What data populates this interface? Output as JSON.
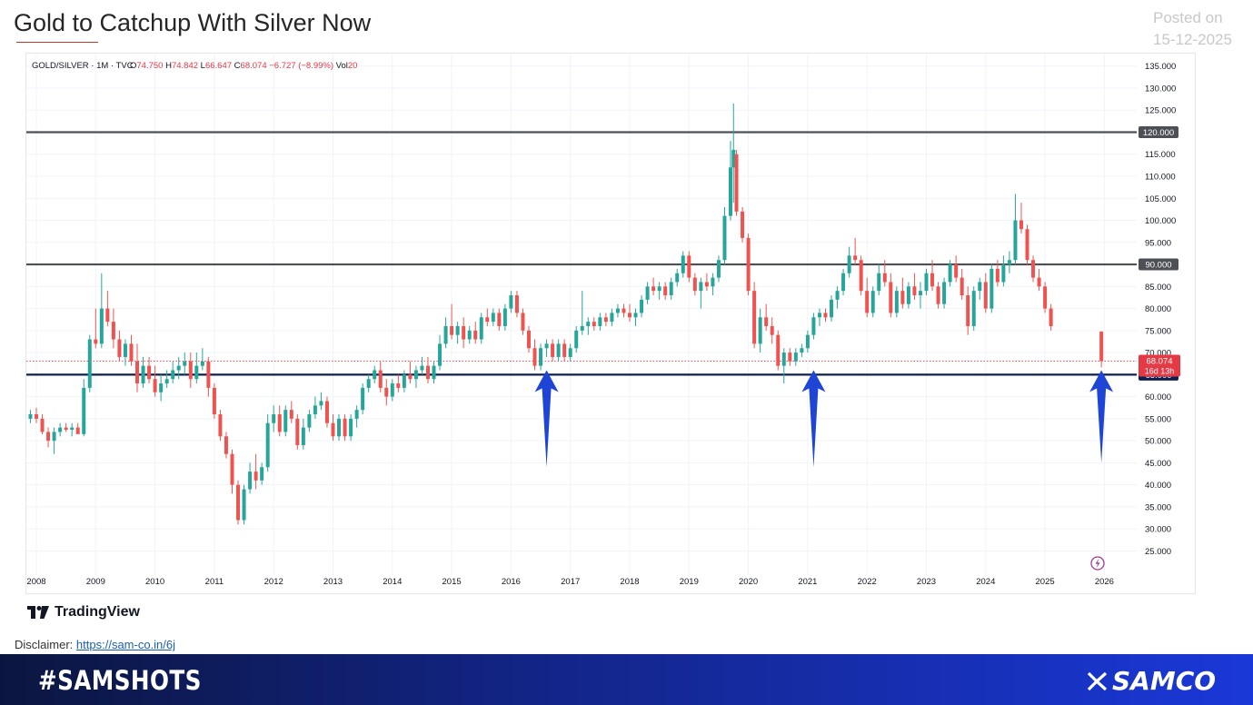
{
  "header": {
    "title": "Gold to Catchup With Silver Now",
    "posted_label": "Posted on",
    "posted_date": "15-12-2025"
  },
  "chart_data": {
    "type": "candlestick",
    "instrument_line": {
      "symbol": "GOLD/SILVER · 1M · TVC",
      "o_label": "O",
      "o_value": "74.750",
      "h_label": "H",
      "h_value": "74.842",
      "l_label": "L",
      "l_value": "66.647",
      "c_label": "C",
      "c_value": "68.074",
      "change": "−6.727 (−8.99%)",
      "vol_label": "Vol",
      "vol_value": "20"
    },
    "ylim": [
      22,
      137
    ],
    "y_ticks": [
      "135.000",
      "130.000",
      "125.000",
      "120.000",
      "115.000",
      "110.000",
      "105.000",
      "100.000",
      "95.000",
      "90.000",
      "85.000",
      "80.000",
      "75.000",
      "70.000",
      "65.000",
      "60.000",
      "55.000",
      "50.000",
      "45.000",
      "40.000",
      "35.000",
      "30.000",
      "25.000"
    ],
    "x_ticks": [
      "2008",
      "2009",
      "2010",
      "2011",
      "2012",
      "2013",
      "2014",
      "2015",
      "2016",
      "2017",
      "2018",
      "2019",
      "2020",
      "2021",
      "2022",
      "2023",
      "2024",
      "2025",
      "2026"
    ],
    "horizontal_levels": [
      {
        "value": 120,
        "label": "120.000",
        "color": "#4d4f57"
      },
      {
        "value": 90,
        "label": "90.000",
        "color": "#4d4f57"
      },
      {
        "value": 65,
        "label": "65.000",
        "color": "#0f1f4f"
      }
    ],
    "current_price": {
      "value": 68.074,
      "label": "68.074",
      "countdown": "16d 13h",
      "color": "#e53946"
    },
    "arrows": [
      {
        "date": 2016.6,
        "tip": 66,
        "tail": 44
      },
      {
        "date": 2021.1,
        "tip": 66,
        "tail": 44
      },
      {
        "date": 2025.95,
        "tip": 66,
        "tail": 45
      }
    ],
    "colors": {
      "up": "#26a69a",
      "down": "#ef5350",
      "arrow": "#1f45d6"
    },
    "candles": [
      [
        2007.9,
        55,
        57,
        54,
        56
      ],
      [
        2008.0,
        56,
        57.5,
        54,
        55
      ],
      [
        2008.1,
        55,
        56,
        51.5,
        52
      ],
      [
        2008.2,
        52,
        53,
        48.5,
        50
      ],
      [
        2008.3,
        50,
        53,
        47,
        52
      ],
      [
        2008.4,
        52,
        54,
        51,
        53
      ],
      [
        2008.5,
        53,
        54,
        52,
        52.5
      ],
      [
        2008.6,
        52.5,
        54,
        51,
        53
      ],
      [
        2008.7,
        53,
        54,
        52,
        51.5
      ],
      [
        2008.8,
        51.5,
        64,
        51,
        62
      ],
      [
        2008.9,
        62,
        74,
        61,
        73
      ],
      [
        2009.0,
        73,
        80,
        71,
        72
      ],
      [
        2009.1,
        72,
        88,
        71,
        80
      ],
      [
        2009.2,
        80,
        84,
        76,
        77
      ],
      [
        2009.3,
        77,
        80,
        71,
        73
      ],
      [
        2009.4,
        73,
        75,
        68,
        69
      ],
      [
        2009.5,
        69,
        73,
        67,
        72
      ],
      [
        2009.6,
        72,
        74,
        67,
        68
      ],
      [
        2009.7,
        68,
        72,
        61,
        63
      ],
      [
        2009.8,
        63,
        69,
        62,
        67
      ],
      [
        2009.9,
        67,
        69,
        63,
        64
      ],
      [
        2010.0,
        64,
        67,
        60,
        61
      ],
      [
        2010.1,
        61,
        65,
        59,
        63
      ],
      [
        2010.2,
        63,
        66,
        62,
        64
      ],
      [
        2010.3,
        64,
        68,
        63,
        66
      ],
      [
        2010.4,
        66,
        69,
        64,
        67
      ],
      [
        2010.5,
        67,
        70,
        65,
        68
      ],
      [
        2010.6,
        68,
        70,
        62,
        64
      ],
      [
        2010.7,
        64,
        70,
        63,
        67
      ],
      [
        2010.8,
        67,
        71,
        66,
        68
      ],
      [
        2010.9,
        68,
        69,
        60,
        62
      ],
      [
        2011.0,
        62,
        63,
        55,
        56
      ],
      [
        2011.1,
        56,
        57,
        50,
        51
      ],
      [
        2011.2,
        51,
        52,
        46,
        47
      ],
      [
        2011.3,
        47,
        48,
        38,
        40
      ],
      [
        2011.4,
        40,
        41,
        31,
        32
      ],
      [
        2011.5,
        32,
        40,
        31,
        39
      ],
      [
        2011.6,
        39,
        45,
        38,
        43
      ],
      [
        2011.7,
        43,
        47,
        39,
        41
      ],
      [
        2011.8,
        41,
        45,
        40,
        44
      ],
      [
        2011.9,
        44,
        56,
        43,
        54
      ],
      [
        2012.0,
        54,
        58,
        52,
        56
      ],
      [
        2012.1,
        56,
        58,
        51,
        52
      ],
      [
        2012.2,
        52,
        58,
        51,
        57
      ],
      [
        2012.3,
        57,
        59,
        54,
        55
      ],
      [
        2012.4,
        55,
        56,
        48,
        49
      ],
      [
        2012.5,
        49,
        55,
        48,
        53
      ],
      [
        2012.6,
        53,
        57,
        52,
        56
      ],
      [
        2012.7,
        56,
        60,
        55,
        58
      ],
      [
        2012.8,
        58,
        61,
        57,
        59
      ],
      [
        2012.9,
        59,
        60,
        53,
        54
      ],
      [
        2013.0,
        54,
        56,
        50,
        51
      ],
      [
        2013.1,
        51,
        56,
        50,
        55
      ],
      [
        2013.2,
        55,
        56,
        50,
        51
      ],
      [
        2013.3,
        51,
        56,
        50,
        55
      ],
      [
        2013.4,
        55,
        58,
        53,
        57
      ],
      [
        2013.5,
        57,
        63,
        56,
        62
      ],
      [
        2013.6,
        62,
        65,
        61,
        64
      ],
      [
        2013.7,
        64,
        67,
        63,
        66
      ],
      [
        2013.8,
        66,
        68,
        61,
        62
      ],
      [
        2013.9,
        62,
        64,
        58,
        60
      ],
      [
        2014.0,
        60,
        64,
        59,
        63
      ],
      [
        2014.1,
        63,
        65,
        61,
        62
      ],
      [
        2014.2,
        62,
        66,
        61,
        65
      ],
      [
        2014.3,
        65,
        68,
        63,
        64
      ],
      [
        2014.4,
        64,
        67,
        62,
        66
      ],
      [
        2014.5,
        66,
        69,
        65,
        67
      ],
      [
        2014.6,
        67,
        69,
        63,
        64
      ],
      [
        2014.7,
        64,
        68,
        63,
        67
      ],
      [
        2014.8,
        67,
        74,
        66,
        72
      ],
      [
        2014.9,
        72,
        78,
        71,
        76
      ],
      [
        2015.0,
        76,
        81,
        73,
        74
      ],
      [
        2015.1,
        74,
        77,
        72,
        76
      ],
      [
        2015.2,
        76,
        78,
        71,
        73
      ],
      [
        2015.3,
        73,
        76,
        72,
        75
      ],
      [
        2015.4,
        75,
        77,
        72,
        73
      ],
      [
        2015.5,
        73,
        79,
        72,
        78
      ],
      [
        2015.6,
        78,
        80,
        76,
        77
      ],
      [
        2015.7,
        77,
        80,
        76,
        79
      ],
      [
        2015.8,
        79,
        80,
        75,
        76
      ],
      [
        2015.9,
        76,
        81,
        75,
        80
      ],
      [
        2016.0,
        80,
        84,
        79,
        83
      ],
      [
        2016.1,
        83,
        84,
        78,
        79
      ],
      [
        2016.2,
        79,
        80,
        74,
        75
      ],
      [
        2016.3,
        75,
        76,
        70,
        71
      ],
      [
        2016.4,
        71,
        73,
        66,
        67
      ],
      [
        2016.5,
        67,
        72,
        66,
        71
      ],
      [
        2016.6,
        71,
        73,
        69,
        72
      ],
      [
        2016.7,
        72,
        73,
        68,
        69
      ],
      [
        2016.8,
        69,
        73,
        68,
        72
      ],
      [
        2016.9,
        72,
        73,
        68,
        69
      ],
      [
        2017.0,
        69,
        72,
        68,
        71
      ],
      [
        2017.1,
        71,
        76,
        70,
        75
      ],
      [
        2017.2,
        75,
        84,
        74,
        76
      ],
      [
        2017.3,
        76,
        78,
        74,
        77
      ],
      [
        2017.4,
        77,
        78,
        75,
        76
      ],
      [
        2017.5,
        76,
        79,
        75,
        78
      ],
      [
        2017.6,
        78,
        79,
        76,
        77
      ],
      [
        2017.7,
        77,
        80,
        76,
        79
      ],
      [
        2017.8,
        79,
        81,
        78,
        80
      ],
      [
        2017.9,
        80,
        81,
        78,
        79
      ],
      [
        2018.0,
        79,
        81,
        77,
        78
      ],
      [
        2018.1,
        78,
        80,
        76,
        79
      ],
      [
        2018.2,
        79,
        83,
        78,
        82
      ],
      [
        2018.3,
        82,
        86,
        81,
        85
      ],
      [
        2018.4,
        85,
        87,
        83,
        84
      ],
      [
        2018.5,
        84,
        86,
        82,
        85
      ],
      [
        2018.6,
        85,
        86,
        82,
        83
      ],
      [
        2018.7,
        83,
        87,
        82,
        86
      ],
      [
        2018.8,
        86,
        89,
        85,
        88
      ],
      [
        2018.9,
        88,
        93,
        87,
        92
      ],
      [
        2019.0,
        92,
        93,
        86,
        87
      ],
      [
        2019.1,
        87,
        88,
        83,
        84
      ],
      [
        2019.2,
        84,
        87,
        80,
        86
      ],
      [
        2019.3,
        86,
        88,
        84,
        85
      ],
      [
        2019.4,
        85,
        88,
        83,
        87
      ],
      [
        2019.5,
        87,
        92,
        86,
        91
      ],
      [
        2019.6,
        91,
        103,
        90,
        101
      ],
      [
        2019.7,
        101,
        118,
        100,
        112
      ],
      [
        2019.75,
        112,
        126.5,
        104,
        116
      ],
      [
        2019.8,
        115,
        116,
        101,
        102
      ],
      [
        2019.9,
        102,
        103,
        95,
        96
      ],
      [
        2020.0,
        96,
        97,
        83,
        84
      ],
      [
        2020.1,
        84,
        86,
        71,
        72
      ],
      [
        2020.2,
        72,
        80,
        70,
        78
      ],
      [
        2020.3,
        78,
        81,
        75,
        76
      ],
      [
        2020.4,
        76,
        78,
        72,
        74
      ],
      [
        2020.5,
        74,
        75,
        66,
        67
      ],
      [
        2020.6,
        67,
        71,
        63,
        70
      ],
      [
        2020.7,
        70,
        71,
        67,
        68
      ],
      [
        2020.8,
        68,
        71,
        67,
        70
      ],
      [
        2020.9,
        70,
        72,
        69,
        71
      ],
      [
        2021.0,
        71,
        75,
        70,
        74
      ],
      [
        2021.1,
        74,
        79,
        73,
        78
      ],
      [
        2021.2,
        78,
        80,
        76,
        79
      ],
      [
        2021.3,
        79,
        80,
        77,
        78
      ],
      [
        2021.4,
        78,
        83,
        77,
        82
      ],
      [
        2021.5,
        82,
        85,
        80,
        84
      ],
      [
        2021.6,
        84,
        89,
        83,
        88
      ],
      [
        2021.7,
        88,
        94,
        87,
        92
      ],
      [
        2021.8,
        92,
        96,
        90,
        91
      ],
      [
        2021.9,
        91,
        92,
        83,
        84
      ],
      [
        2022.0,
        84,
        87,
        78,
        79
      ],
      [
        2022.1,
        79,
        85,
        78,
        84
      ],
      [
        2022.2,
        84,
        90,
        83,
        88
      ],
      [
        2022.3,
        88,
        91,
        85,
        86
      ],
      [
        2022.4,
        86,
        88,
        78,
        79
      ],
      [
        2022.5,
        79,
        85,
        78,
        84
      ],
      [
        2022.6,
        84,
        87,
        80,
        81
      ],
      [
        2022.7,
        81,
        86,
        80,
        85
      ],
      [
        2022.8,
        85,
        88,
        82,
        83
      ],
      [
        2022.9,
        83,
        86,
        80,
        84
      ],
      [
        2023.0,
        84,
        89,
        83,
        88
      ],
      [
        2023.1,
        88,
        91,
        84,
        85
      ],
      [
        2023.2,
        85,
        86,
        80,
        81
      ],
      [
        2023.3,
        81,
        87,
        80,
        86
      ],
      [
        2023.4,
        86,
        91,
        85,
        90
      ],
      [
        2023.5,
        90,
        92,
        86,
        87
      ],
      [
        2023.6,
        87,
        89,
        82,
        83
      ],
      [
        2023.7,
        83,
        85,
        74,
        76
      ],
      [
        2023.8,
        76,
        85,
        75,
        84
      ],
      [
        2023.9,
        84,
        87,
        82,
        86
      ],
      [
        2024.0,
        86,
        88,
        79,
        80
      ],
      [
        2024.1,
        80,
        90,
        79,
        89
      ],
      [
        2024.2,
        89,
        91,
        85,
        86
      ],
      [
        2024.3,
        86,
        92,
        85,
        90
      ],
      [
        2024.4,
        90,
        93,
        88,
        91
      ],
      [
        2024.5,
        91,
        106,
        90,
        100
      ],
      [
        2024.6,
        100,
        104,
        97,
        98
      ],
      [
        2024.7,
        98,
        99,
        90,
        91
      ],
      [
        2024.8,
        91,
        92,
        86,
        87
      ],
      [
        2024.9,
        87,
        89,
        84,
        85
      ],
      [
        2025.0,
        85,
        86,
        79,
        80
      ],
      [
        2025.1,
        80,
        81,
        75,
        76
      ],
      [
        2025.95,
        74.75,
        74.842,
        66.647,
        68.074
      ]
    ]
  },
  "branding": {
    "tradingview": "TradingView",
    "disclaimer_label": "Disclaimer:",
    "disclaimer_link": "https://sam-co.in/6j",
    "hashtag": "#SAMSHOTS",
    "brand": "SAMCO"
  }
}
